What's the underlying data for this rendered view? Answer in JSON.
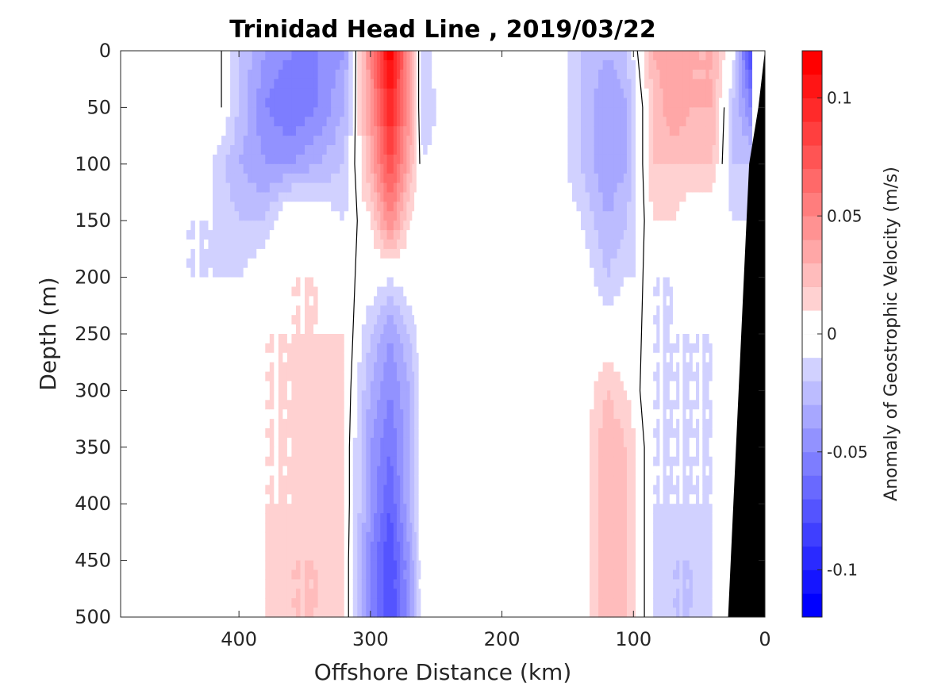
{
  "chart_data": {
    "type": "heatmap",
    "subtype": "filled-contour",
    "title": "Trinidad Head Line , 2019/03/22",
    "xlabel": "Offshore Distance (km)",
    "ylabel": "Depth (m)",
    "xlim": [
      490,
      0
    ],
    "ylim": [
      0,
      500
    ],
    "x_reversed": true,
    "y_reversed": true,
    "x_ticks": [
      400,
      300,
      200,
      100,
      0
    ],
    "y_ticks": [
      0,
      50,
      100,
      150,
      200,
      250,
      300,
      350,
      400,
      450,
      500
    ],
    "colorbar": {
      "label": "Anomaly of Geostrophic Velocity (m/s)",
      "range": [
        -0.12,
        0.12
      ],
      "step": 0.01,
      "ticks": [
        -0.1,
        -0.05,
        0,
        0.05,
        0.1
      ],
      "tick_labels": [
        "-0.1",
        "-0.05",
        "0",
        "0.05",
        "0.1"
      ],
      "negative_color": "#0000ff",
      "positive_color": "#ff0000",
      "neutral_color": "#ffffff"
    },
    "data_extent_x": [
      440,
      0
    ],
    "depth_grid": [
      0,
      50,
      100,
      150,
      200,
      250,
      300,
      350,
      400,
      450,
      500
    ],
    "columns": [
      {
        "x": 440,
        "v": [
          0.0,
          0.0,
          0.0,
          -0.01,
          -0.01,
          -0.01,
          0.0,
          0.0,
          0.0,
          0.01,
          0.01
        ]
      },
      {
        "x": 420,
        "v": [
          0.01,
          0.01,
          -0.01,
          -0.01,
          -0.01,
          0.0,
          0.0,
          0.0,
          0.0,
          0.0,
          0.0
        ]
      },
      {
        "x": 400,
        "v": [
          -0.02,
          -0.02,
          -0.03,
          -0.02,
          -0.01,
          0.0,
          0.0,
          0.0,
          0.0,
          0.0,
          0.0
        ]
      },
      {
        "x": 380,
        "v": [
          -0.04,
          -0.05,
          -0.04,
          -0.02,
          0.0,
          0.01,
          0.01,
          0.01,
          0.01,
          0.01,
          0.01
        ]
      },
      {
        "x": 360,
        "v": [
          -0.05,
          -0.06,
          -0.04,
          0.01,
          0.01,
          0.01,
          0.01,
          0.01,
          0.01,
          0.02,
          0.02
        ]
      },
      {
        "x": 340,
        "v": [
          -0.05,
          -0.05,
          -0.03,
          0.0,
          0.01,
          0.01,
          0.02,
          0.02,
          0.02,
          0.02,
          0.02
        ]
      },
      {
        "x": 320,
        "v": [
          -0.04,
          -0.03,
          -0.02,
          -0.01,
          0.0,
          0.01,
          0.01,
          0.01,
          0.01,
          0.01,
          0.01
        ]
      },
      {
        "x": 300,
        "v": [
          0.05,
          0.04,
          0.03,
          0.01,
          0.0,
          -0.02,
          -0.03,
          -0.04,
          -0.04,
          -0.05,
          -0.05
        ]
      },
      {
        "x": 285,
        "v": [
          0.12,
          0.1,
          0.08,
          0.05,
          -0.01,
          -0.04,
          -0.05,
          -0.06,
          -0.07,
          -0.08,
          -0.08
        ]
      },
      {
        "x": 270,
        "v": [
          0.04,
          0.04,
          0.03,
          0.01,
          0.0,
          -0.02,
          -0.03,
          -0.03,
          -0.03,
          -0.04,
          -0.04
        ]
      },
      {
        "x": 260,
        "v": [
          -0.02,
          -0.02,
          -0.01,
          0.0,
          0.0,
          0.0,
          0.0,
          0.0,
          0.0,
          0.0,
          0.0
        ]
      },
      {
        "x": 240,
        "v": [
          0.01,
          0.0,
          0.0,
          0.0,
          0.0,
          0.0,
          0.0,
          0.0,
          0.0,
          0.0,
          0.0
        ]
      },
      {
        "x": 220,
        "v": [
          0.0,
          0.0,
          0.0,
          0.0,
          0.0,
          0.0,
          0.0,
          0.0,
          0.0,
          0.0,
          -0.01
        ]
      },
      {
        "x": 200,
        "v": [
          0.0,
          0.0,
          0.01,
          0.0,
          0.0,
          0.0,
          0.0,
          0.0,
          0.0,
          -0.01,
          -0.01
        ]
      },
      {
        "x": 180,
        "v": [
          -0.01,
          -0.01,
          0.0,
          0.0,
          0.0,
          0.0,
          0.0,
          0.0,
          0.0,
          0.0,
          0.0
        ]
      },
      {
        "x": 160,
        "v": [
          0.0,
          0.0,
          0.0,
          0.0,
          0.0,
          0.0,
          0.0,
          0.0,
          0.0,
          0.0,
          0.0
        ]
      },
      {
        "x": 140,
        "v": [
          -0.02,
          -0.02,
          -0.02,
          -0.01,
          0.0,
          0.0,
          0.0,
          0.0,
          0.0,
          0.0,
          0.0
        ]
      },
      {
        "x": 120,
        "v": [
          -0.03,
          -0.04,
          -0.04,
          -0.03,
          -0.02,
          0.0,
          0.02,
          0.03,
          0.03,
          0.03,
          0.03
        ]
      },
      {
        "x": 105,
        "v": [
          -0.02,
          -0.03,
          -0.03,
          -0.02,
          -0.01,
          0.0,
          0.01,
          0.02,
          0.02,
          0.02,
          0.02
        ]
      },
      {
        "x": 85,
        "v": [
          0.03,
          0.02,
          0.02,
          0.01,
          -0.01,
          -0.01,
          -0.01,
          -0.01,
          -0.01,
          -0.01,
          -0.01
        ]
      },
      {
        "x": 70,
        "v": [
          0.04,
          0.04,
          0.02,
          0.01,
          -0.01,
          -0.01,
          -0.01,
          -0.01,
          -0.01,
          -0.02,
          -0.02
        ]
      },
      {
        "x": 55,
        "v": [
          0.03,
          0.03,
          0.02,
          0.0,
          0.0,
          -0.01,
          -0.01,
          -0.01,
          -0.01,
          -0.02,
          -0.02
        ]
      },
      {
        "x": 40,
        "v": [
          0.03,
          0.03,
          0.02,
          0.0,
          0.0,
          -0.01,
          -0.01,
          -0.01,
          -0.01,
          -0.01,
          -0.01
        ]
      },
      {
        "x": 25,
        "v": [
          0.0,
          -0.02,
          -0.02,
          -0.01,
          -0.01,
          -0.01,
          0.0,
          0.0,
          0.0,
          0.0,
          0.0
        ]
      },
      {
        "x": 10,
        "v": [
          -0.09,
          -0.05,
          -0.02,
          -0.01,
          0.0,
          0.0,
          0.0,
          0.0,
          0.0,
          0.0,
          0.0
        ]
      }
    ],
    "bathymetry": {
      "color": "#000000",
      "boundary": [
        [
          0,
          0
        ],
        [
          5,
          50
        ],
        [
          12,
          100
        ],
        [
          14,
          150
        ],
        [
          16,
          200
        ],
        [
          18,
          250
        ],
        [
          20,
          300
        ],
        [
          22,
          350
        ],
        [
          24,
          400
        ],
        [
          26,
          450
        ],
        [
          28,
          500
        ]
      ]
    }
  }
}
